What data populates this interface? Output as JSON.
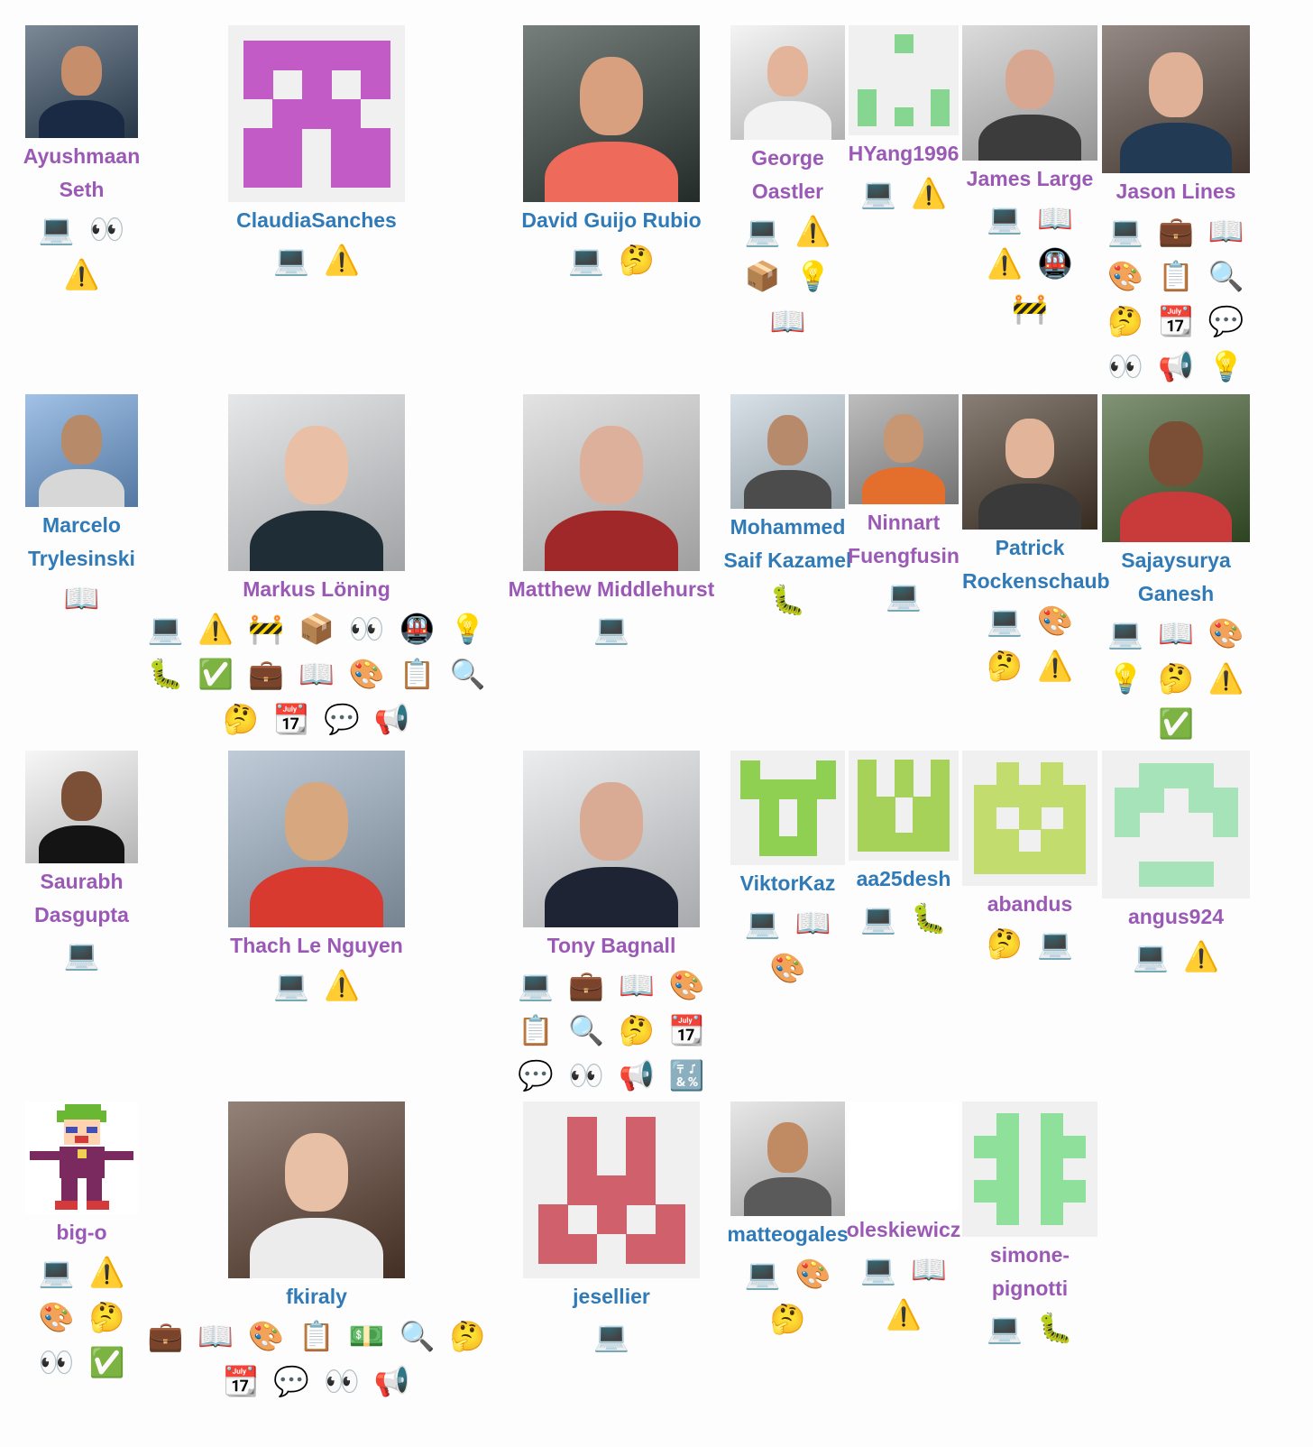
{
  "contributors": [
    {
      "name": "Ayushmaan Seth",
      "color": "#9b59b6",
      "emojis": [
        "💻",
        "👀",
        "⚠️"
      ],
      "avatar": {
        "kind": "photo",
        "bg": "#34495e",
        "skin": "#c68e6b",
        "shirt": "#1b2a44"
      }
    },
    {
      "name": "ClaudiaSanches",
      "color": "#2f7ab7",
      "emojis": [
        "💻",
        "⚠️"
      ],
      "avatar": {
        "kind": "identicon",
        "color": "#c25bc5"
      }
    },
    {
      "name": "David Guijo Rubio",
      "color": "#2f7ab7",
      "emojis": [
        "💻",
        "🤔"
      ],
      "avatar": {
        "kind": "photo",
        "bg": "#2e3a36",
        "skin": "#d8a07f",
        "shirt": "#ee6b5c"
      }
    },
    {
      "name": "George Oastler",
      "color": "#9b59b6",
      "emojis": [
        "💻",
        "⚠️",
        "📦",
        "💡",
        "📖"
      ],
      "avatar": {
        "kind": "photo",
        "bg": "#eeeeee",
        "skin": "#e3b49a",
        "shirt": "#f2f2f2"
      }
    },
    {
      "name": "HYang1996",
      "color": "#9b59b6",
      "emojis": [
        "💻",
        "⚠️"
      ],
      "avatar": {
        "kind": "identicon",
        "color": "#86d591"
      }
    },
    {
      "name": "James Large",
      "color": "#9b59b6",
      "emojis": [
        "💻",
        "📖",
        "⚠️",
        "🚇",
        "🚧"
      ],
      "avatar": {
        "kind": "photo",
        "bg": "#c7c7c7",
        "skin": "#d8a791",
        "shirt": "#3c3c3c"
      }
    },
    {
      "name": "Jason Lines",
      "color": "#9b59b6",
      "emojis": [
        "💻",
        "💼",
        "📖",
        "🎨",
        "📋",
        "🔍",
        "🤔",
        "📆",
        "💬",
        "👀",
        "📢",
        "💡"
      ],
      "avatar": {
        "kind": "photo",
        "bg": "#5b4a42",
        "skin": "#e0b197",
        "shirt": "#233a54"
      }
    },
    {
      "name": "Marcelo Trylesinski",
      "color": "#2f7ab7",
      "emojis": [
        "📖"
      ],
      "avatar": {
        "kind": "photo",
        "bg": "#6fa0d8",
        "skin": "#b78a6a",
        "shirt": "#d7d7d7"
      }
    },
    {
      "name": "Markus Löning",
      "color": "#9b59b6",
      "emojis": [
        "💻",
        "⚠️",
        "🚧",
        "📦",
        "👀",
        "🚇",
        "💡",
        "🐛",
        "✅",
        "💼",
        "📖",
        "🎨",
        "📋",
        "🔍",
        "🤔",
        "📆",
        "💬",
        "📢"
      ],
      "avatar": {
        "kind": "photo",
        "bg": "#d7dadd",
        "skin": "#e9bfa5",
        "shirt": "#1f2d36"
      }
    },
    {
      "name": "Matthew Middlehurst",
      "color": "#9b59b6",
      "emojis": [
        "💻"
      ],
      "avatar": {
        "kind": "photo",
        "bg": "#d4d4d4",
        "skin": "#dcb09a",
        "shirt": "#a02828"
      }
    },
    {
      "name": "Mohammed Saif Kazamel",
      "color": "#2f7ab7",
      "emojis": [
        "🐛"
      ],
      "avatar": {
        "kind": "photo",
        "bg": "#c3d1db",
        "skin": "#b88a6c",
        "shirt": "#4c4c4c"
      }
    },
    {
      "name": "Ninnart Fuengfusin",
      "color": "#9b59b6",
      "emojis": [
        "💻"
      ],
      "avatar": {
        "kind": "photo",
        "bg": "#9a9a9a",
        "skin": "#c79673",
        "shirt": "#e46f2c"
      }
    },
    {
      "name": "Patrick Rockenschaub",
      "color": "#2f7ab7",
      "emojis": [
        "💻",
        "🎨",
        "🤔",
        "⚠️"
      ],
      "avatar": {
        "kind": "photo",
        "bg": "#4a3a2c",
        "skin": "#e2b59b",
        "shirt": "#3a3a3a"
      }
    },
    {
      "name": "Sajaysurya Ganesh",
      "color": "#2f7ab7",
      "emojis": [
        "💻",
        "📖",
        "🎨",
        "💡",
        "🤔",
        "⚠️",
        "✅"
      ],
      "avatar": {
        "kind": "photo",
        "bg": "#3d5a2c",
        "skin": "#7a4f35",
        "shirt": "#c93b3b"
      }
    },
    {
      "name": "Saurabh Dasgupta",
      "color": "#9b59b6",
      "emojis": [
        "💻"
      ],
      "avatar": {
        "kind": "photo",
        "bg": "#f2f2f2",
        "skin": "#7c5036",
        "shirt": "#141414"
      }
    },
    {
      "name": "Thach Le Nguyen",
      "color": "#9b59b6",
      "emojis": [
        "💻",
        "⚠️"
      ],
      "avatar": {
        "kind": "photo",
        "bg": "#9db0c3",
        "skin": "#d7a880",
        "shirt": "#d83a2f"
      }
    },
    {
      "name": "Tony Bagnall",
      "color": "#9b59b6",
      "emojis": [
        "💻",
        "💼",
        "📖",
        "🎨",
        "📋",
        "🔍",
        "🤔",
        "📆",
        "💬",
        "👀",
        "📢",
        "🔣"
      ],
      "avatar": {
        "kind": "photo",
        "bg": "#e0e3e6",
        "skin": "#d9ab95",
        "shirt": "#1e2433"
      }
    },
    {
      "name": "ViktorKaz",
      "color": "#2f7ab7",
      "emojis": [
        "💻",
        "📖",
        "🎨"
      ],
      "avatar": {
        "kind": "identicon",
        "color": "#8fd052"
      }
    },
    {
      "name": "aa25desh",
      "color": "#2f7ab7",
      "emojis": [
        "💻",
        "🐛"
      ],
      "avatar": {
        "kind": "identicon",
        "color": "#a6d25a"
      }
    },
    {
      "name": "abandus",
      "color": "#9b59b6",
      "emojis": [
        "🤔",
        "💻"
      ],
      "avatar": {
        "kind": "identicon",
        "color": "#c2dd6e"
      }
    },
    {
      "name": "angus924",
      "color": "#9b59b6",
      "emojis": [
        "💻",
        "⚠️"
      ],
      "avatar": {
        "kind": "identicon",
        "color": "#a7e3b8"
      }
    },
    {
      "name": "big-o",
      "color": "#9b59b6",
      "emojis": [
        "💻",
        "⚠️",
        "🎨",
        "🤔",
        "👀",
        "✅"
      ],
      "avatar": {
        "kind": "pixelart"
      }
    },
    {
      "name": "fkiraly",
      "color": "#2f7ab7",
      "emojis": [
        "💼",
        "📖",
        "🎨",
        "📋",
        "💵",
        "🔍",
        "🤔",
        "📆",
        "💬",
        "👀",
        "📢"
      ],
      "avatar": {
        "kind": "photo",
        "bg": "#5a3e2f",
        "skin": "#e8c0a5",
        "shirt": "#ececec"
      }
    },
    {
      "name": "jesellier",
      "color": "#2f7ab7",
      "emojis": [
        "💻"
      ],
      "avatar": {
        "kind": "identicon",
        "color": "#d0606c"
      }
    },
    {
      "name": "matteogales",
      "color": "#2f7ab7",
      "emojis": [
        "💻",
        "🎨",
        "🤔"
      ],
      "avatar": {
        "kind": "photo",
        "bg": "#dadada",
        "skin": "#c08a63",
        "shirt": "#5a5a5a"
      }
    },
    {
      "name": "oleskiewicz",
      "color": "#9b59b6",
      "emojis": [
        "💻",
        "📖",
        "⚠️"
      ],
      "avatar": {
        "kind": "blank"
      }
    },
    {
      "name": "simone-pignotti",
      "color": "#9b59b6",
      "emojis": [
        "💻",
        "🐛"
      ],
      "avatar": {
        "kind": "identicon",
        "color": "#8ee09a"
      }
    }
  ]
}
